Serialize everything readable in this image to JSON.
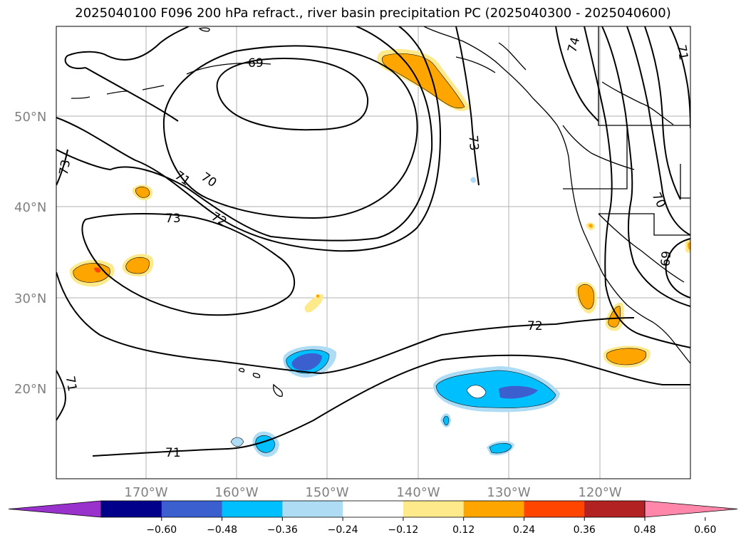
{
  "title": "2025040100 F096 200 hPa refract., river basin precipitation PC (2025040300 - 2025040600)",
  "map": {
    "lat_labels": [
      "50°N",
      "40°N",
      "30°N",
      "20°N"
    ],
    "lon_labels": [
      "170°W",
      "160°W",
      "150°W",
      "140°W",
      "130°W",
      "120°W"
    ],
    "contour_labels": [
      "69",
      "70",
      "71",
      "72",
      "73",
      "73",
      "74",
      "71",
      "70",
      "69",
      "72",
      "71",
      "73",
      "71"
    ],
    "colors": {
      "pos_light": "#fee98b",
      "pos_mid": "#ffa500",
      "pos_strong": "#ff4500",
      "neg_light": "#aedcf5",
      "neg_mid": "#00bfff",
      "neg_strong": "#3c5fd0"
    }
  },
  "colorbar": {
    "colors": [
      "#9932cc",
      "#00008b",
      "#3c5fd0",
      "#00bfff",
      "#aedcf5",
      "#ffffff",
      "#fee98b",
      "#ffa500",
      "#ff4500",
      "#b22222",
      "#ff88aa"
    ],
    "tick_labels": [
      "−0.60",
      "−0.48",
      "−0.36",
      "−0.24",
      "−0.12",
      "0.12",
      "0.24",
      "0.36",
      "0.48",
      "0.60"
    ]
  }
}
